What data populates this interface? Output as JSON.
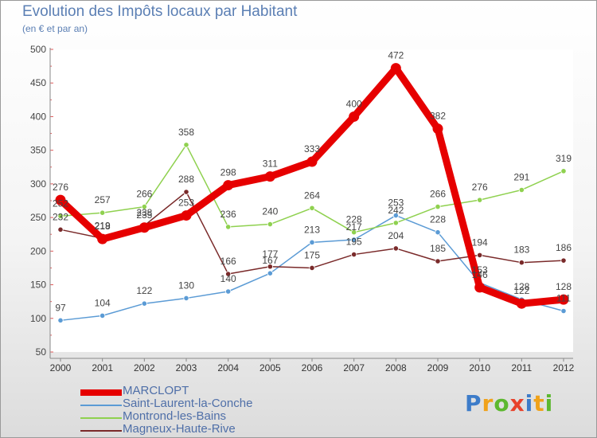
{
  "chart_data": {
    "type": "line",
    "title": "Evolution des Impôts locaux par Habitant",
    "subtitle": "(en € et par an)",
    "categories": [
      "2000",
      "2001",
      "2002",
      "2003",
      "2004",
      "2005",
      "2006",
      "2007",
      "2008",
      "2009",
      "2010",
      "2011",
      "2012"
    ],
    "ylim": [
      50,
      500
    ],
    "yticks": [
      50,
      100,
      150,
      200,
      250,
      300,
      350,
      400,
      450,
      500
    ],
    "series": [
      {
        "name": "MARCLOPT",
        "color": "#e60000",
        "values": [
          276,
          218,
          235,
          253,
          298,
          311,
          333,
          400,
          472,
          382,
          146,
          122,
          128
        ]
      },
      {
        "name": "Saint-Laurent-la-Conche",
        "color": "#5b9bd5",
        "values": [
          97,
          104,
          122,
          130,
          140,
          167,
          213,
          217,
          253,
          228,
          153,
          128,
          111
        ]
      },
      {
        "name": "Montrond-les-Bains",
        "color": "#8fd14f",
        "values": [
          252,
          257,
          266,
          358,
          236,
          240,
          264,
          228,
          242,
          266,
          276,
          291,
          319
        ]
      },
      {
        "name": "Magneux-Haute-Rive",
        "color": "#7a2a2a",
        "values": [
          232,
          219,
          238,
          288,
          166,
          177,
          175,
          195,
          204,
          185,
          194,
          183,
          186
        ]
      }
    ]
  },
  "legend": {
    "items": [
      {
        "label": "MARCLOPT",
        "color": "#e60000"
      },
      {
        "label": "Saint-Laurent-la-Conche",
        "color": "#5b9bd5"
      },
      {
        "label": "Montrond-les-Bains",
        "color": "#8fd14f"
      },
      {
        "label": "Magneux-Haute-Rive",
        "color": "#7a2a2a"
      }
    ]
  },
  "logo": {
    "letters": [
      "P",
      "r",
      "o",
      "x",
      "i",
      "t",
      "i"
    ],
    "colors": [
      "#3d7cc9",
      "#f0a21a",
      "#5cb82f",
      "#e8422b",
      "#3d7cc9",
      "#f0a21a",
      "#5cb82f"
    ]
  }
}
